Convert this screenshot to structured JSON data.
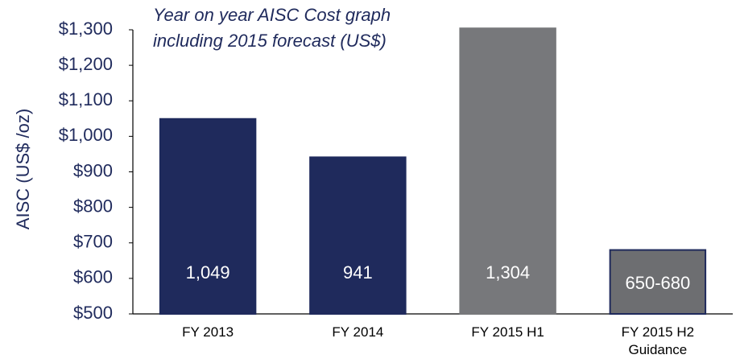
{
  "chart_data": {
    "type": "bar",
    "title": [
      "Year on year AISC Cost graph",
      "including 2015 forecast (US$)"
    ],
    "ylabel": "AISC (US$ /oz)",
    "categories": [
      "FY 2013",
      "FY 2014",
      "FY 2015 H1",
      "FY 2015 H2 Guidance"
    ],
    "values": [
      1049,
      941,
      1304,
      680
    ],
    "value_labels": [
      "1,049",
      "941",
      "1,304",
      "650-680"
    ],
    "colors": [
      "#1f2a5c",
      "#1f2a5c",
      "#77787b",
      "#6d6e71"
    ],
    "edge_colors": [
      "#1f2a5c",
      "#1f2a5c",
      "#77787b",
      "#1f2a5c"
    ],
    "ylim": [
      500,
      1300
    ],
    "yticks": [
      {
        "value": 500,
        "label": "$500"
      },
      {
        "value": 600,
        "label": "$600"
      },
      {
        "value": 700,
        "label": "$700"
      },
      {
        "value": 800,
        "label": "$800"
      },
      {
        "value": 900,
        "label": "$900"
      },
      {
        "value": 1000,
        "label": "$1,000"
      },
      {
        "value": 1100,
        "label": "$1,100"
      },
      {
        "value": 1200,
        "label": "$1,200"
      },
      {
        "value": 1300,
        "label": "$1,300"
      }
    ],
    "grid": false
  }
}
